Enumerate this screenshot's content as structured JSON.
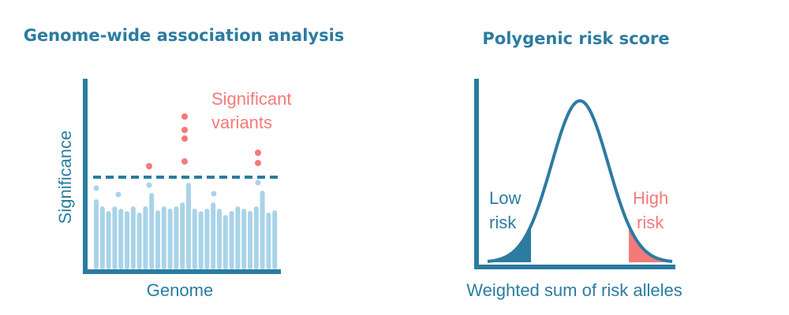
{
  "left": {
    "title": "Genome-wide association analysis",
    "annotation": [
      "Significant",
      "variants"
    ],
    "y_label": "Significance",
    "x_label": "Genome"
  },
  "right": {
    "title": "Polygenic risk score",
    "low_label": [
      "Low",
      "risk"
    ],
    "high_label": [
      "High",
      "risk"
    ],
    "x_label": "Weighted sum of risk alleles"
  }
}
